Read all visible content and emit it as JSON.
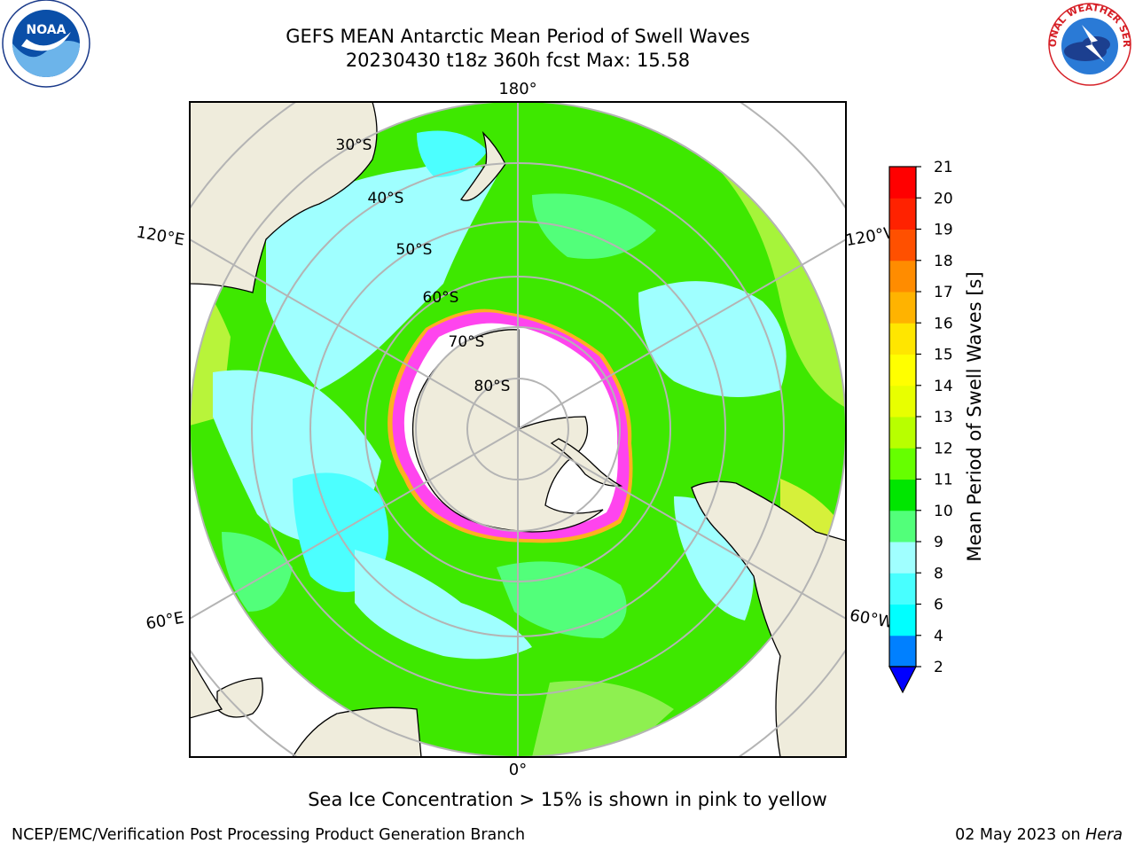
{
  "header": {
    "title_line1": "GEFS MEAN Antarctic Mean Period of Swell Waves",
    "title_line2": "20230430 t18z 360h fcst   Max: 15.58"
  },
  "logos": {
    "left": {
      "icon": "noaa-logo",
      "text": "NOAA"
    },
    "right": {
      "icon": "national-weather-service-logo",
      "text": "NATIONAL WEATHER SERVICE"
    }
  },
  "map": {
    "projection": "south-polar-stereographic",
    "longitude_labels": {
      "top": "180°",
      "left_upper": "120°E",
      "right_upper": "120°W",
      "left_lower": "60°E",
      "right_lower": "60°W",
      "bottom": "0°"
    },
    "latitude_labels": [
      "30°S",
      "40°S",
      "50°S",
      "60°S",
      "70°S",
      "80°S"
    ],
    "colors": {
      "land": "#efecdc",
      "sea_ice": "#ff44ee",
      "ice_edge": "#ffb020",
      "graticule": "#b4b4b4",
      "ocean_main": "#3ee800",
      "ocean_light": "#9fffff",
      "ocean_cyan": "#4cffff"
    }
  },
  "colorbar": {
    "label": "Mean Period of Swell Waves [s]",
    "ticks": [
      "2",
      "4",
      "6",
      "8",
      "9",
      "10",
      "11",
      "12",
      "13",
      "14",
      "15",
      "16",
      "17",
      "18",
      "19",
      "20",
      "21"
    ],
    "colors": [
      "#0033ff",
      "#0080ff",
      "#00ffff",
      "#48ffff",
      "#a0ffff",
      "#52ff7a",
      "#00e600",
      "#66ff00",
      "#b8ff00",
      "#e8ff00",
      "#ffff00",
      "#ffe600",
      "#ffb300",
      "#ff8c00",
      "#ff5000",
      "#ff2200",
      "#ff0000"
    ]
  },
  "subtitle": "Sea Ice Concentration > 15% is shown in pink to yellow",
  "footer": {
    "left": "NCEP/EMC/Verification Post Processing Product Generation Branch",
    "right_date": "02 May 2023 on ",
    "right_host": "Hera"
  }
}
